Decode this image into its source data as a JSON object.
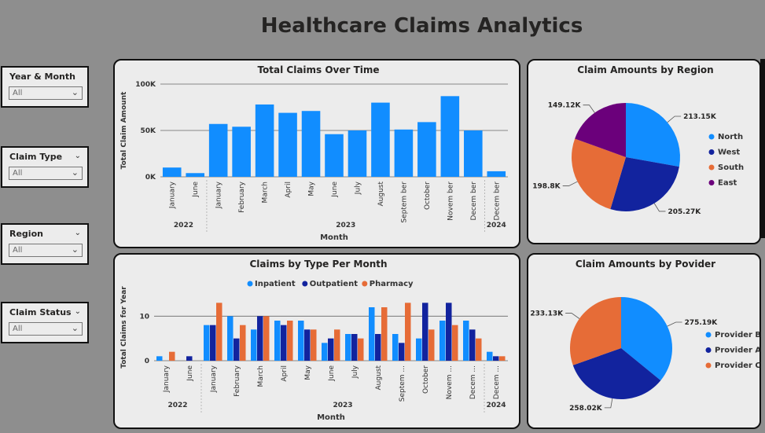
{
  "header": {
    "title": "Healthcare Claims Analytics"
  },
  "filters": [
    {
      "label": "Year & Month",
      "value": "All",
      "has_chevron": false
    },
    {
      "label": "Claim Type",
      "value": "All",
      "has_chevron": true
    },
    {
      "label": "Region",
      "value": "All",
      "has_chevron": true
    },
    {
      "label": "Claim Status",
      "value": "All",
      "has_chevron": true
    }
  ],
  "colors": {
    "blue": "#118dff",
    "navy": "#12239e",
    "orange": "#e66c37",
    "purple": "#6b007b"
  },
  "chart_data": [
    {
      "id": "claims_over_time",
      "type": "bar",
      "title": "Total Claims Over Time",
      "xlabel": "Month",
      "ylabel": "Total Claim Amount",
      "yticks": [
        "0K",
        "50K",
        "100K"
      ],
      "ylim": [
        0,
        100000
      ],
      "categories": [
        "January",
        "June",
        "January",
        "February",
        "March",
        "April",
        "May",
        "June",
        "July",
        "August",
        "Septem ber",
        "October",
        "Novem ber",
        "Decem ber",
        "Decem ber"
      ],
      "years": [
        {
          "label": "2022",
          "count": 2
        },
        {
          "label": "2023",
          "count": 12
        },
        {
          "label": "2024",
          "count": 1
        }
      ],
      "values": [
        10000,
        4000,
        57000,
        54000,
        78000,
        69000,
        71000,
        46000,
        50000,
        80000,
        51000,
        59000,
        87000,
        50000,
        6000
      ]
    },
    {
      "id": "claims_by_type",
      "type": "bar",
      "title": "Claims by Type Per Month",
      "xlabel": "Month",
      "ylabel": "Total Claims for Year",
      "yticks": [
        "0",
        "10"
      ],
      "ylim": [
        0,
        15
      ],
      "categories": [
        "January",
        "June",
        "January",
        "February",
        "March",
        "April",
        "May",
        "June",
        "July",
        "August",
        "Septem ...",
        "October",
        "Novem ...",
        "Decem ...",
        "Decem ..."
      ],
      "years": [
        {
          "label": "2022",
          "count": 2
        },
        {
          "label": "2023",
          "count": 12
        },
        {
          "label": "2024",
          "count": 1
        }
      ],
      "series": [
        {
          "name": "Inpatient",
          "values": [
            1,
            0,
            8,
            10,
            7,
            9,
            9,
            4,
            6,
            12,
            6,
            5,
            9,
            9,
            2
          ]
        },
        {
          "name": "Outpatient",
          "values": [
            0,
            1,
            8,
            5,
            10,
            8,
            7,
            5,
            6,
            6,
            4,
            13,
            13,
            7,
            1
          ]
        },
        {
          "name": "Pharmacy",
          "values": [
            2,
            0,
            13,
            8,
            10,
            9,
            7,
            7,
            5,
            12,
            13,
            7,
            8,
            5,
            1
          ]
        }
      ]
    },
    {
      "id": "amounts_by_region",
      "type": "pie",
      "title": "Claim Amounts by Region",
      "slices": [
        {
          "name": "North",
          "value": 213.15,
          "label": "213.15K"
        },
        {
          "name": "West",
          "value": 205.27,
          "label": "205.27K"
        },
        {
          "name": "South",
          "value": 198.8,
          "label": "198.8K"
        },
        {
          "name": "East",
          "value": 149.12,
          "label": "149.12K"
        }
      ]
    },
    {
      "id": "amounts_by_provider",
      "type": "pie",
      "title": "Claim Amounts by Povider",
      "slices": [
        {
          "name": "Provider B",
          "value": 275.19,
          "label": "275.19K"
        },
        {
          "name": "Provider A",
          "value": 258.02,
          "label": "258.02K"
        },
        {
          "name": "Provider C",
          "value": 233.13,
          "label": "233.13K"
        }
      ]
    }
  ]
}
